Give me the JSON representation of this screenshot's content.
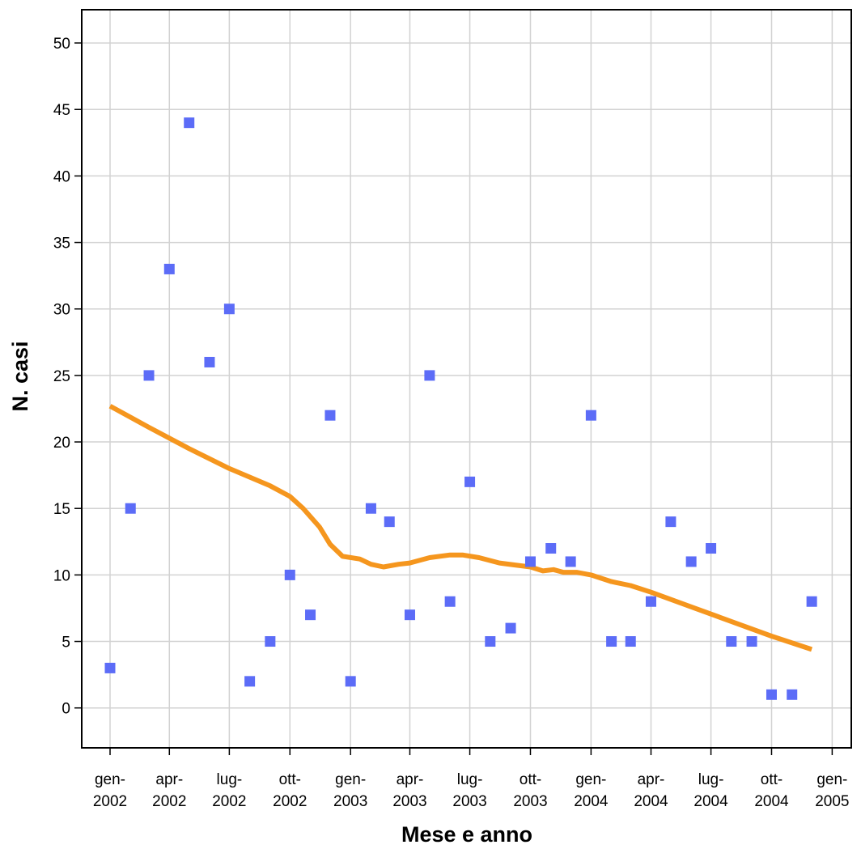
{
  "chart_data": {
    "type": "scatter",
    "title": "",
    "xlabel": "Mese e anno",
    "ylabel": "N. casi",
    "ylim": [
      -3,
      52.5
    ],
    "yticks": [
      0,
      5,
      10,
      15,
      20,
      25,
      30,
      35,
      40,
      45,
      50
    ],
    "xlim": [
      "2001-11-19",
      "2005-01-30"
    ],
    "x_ticks": [
      {
        "date": "2002-01-01",
        "line1": "gen-",
        "line2": "2002"
      },
      {
        "date": "2002-04-01",
        "line1": "apr-",
        "line2": "2002"
      },
      {
        "date": "2002-07-01",
        "line1": "lug-",
        "line2": "2002"
      },
      {
        "date": "2002-10-01",
        "line1": "ott-",
        "line2": "2002"
      },
      {
        "date": "2003-01-01",
        "line1": "gen-",
        "line2": "2003"
      },
      {
        "date": "2003-04-01",
        "line1": "apr-",
        "line2": "2003"
      },
      {
        "date": "2003-07-01",
        "line1": "lug-",
        "line2": "2003"
      },
      {
        "date": "2003-10-01",
        "line1": "ott-",
        "line2": "2003"
      },
      {
        "date": "2004-01-01",
        "line1": "gen-",
        "line2": "2004"
      },
      {
        "date": "2004-04-01",
        "line1": "apr-",
        "line2": "2004"
      },
      {
        "date": "2004-07-01",
        "line1": "lug-",
        "line2": "2004"
      },
      {
        "date": "2004-10-01",
        "line1": "ott-",
        "line2": "2004"
      },
      {
        "date": "2005-01-01",
        "line1": "gen-",
        "line2": "2005"
      }
    ],
    "grid": true,
    "legend": "none",
    "series": [
      {
        "kind": "scatter",
        "marker": "square",
        "color": "#5c6cf7",
        "points": [
          {
            "x": "2002-01-01",
            "y": 3
          },
          {
            "x": "2002-02-01",
            "y": 15
          },
          {
            "x": "2002-03-01",
            "y": 25
          },
          {
            "x": "2002-04-01",
            "y": 33
          },
          {
            "x": "2002-05-01",
            "y": 44
          },
          {
            "x": "2002-06-01",
            "y": 26
          },
          {
            "x": "2002-07-01",
            "y": 30
          },
          {
            "x": "2002-08-01",
            "y": 2
          },
          {
            "x": "2002-09-01",
            "y": 5
          },
          {
            "x": "2002-10-01",
            "y": 10
          },
          {
            "x": "2002-11-01",
            "y": 7
          },
          {
            "x": "2002-12-01",
            "y": 22
          },
          {
            "x": "2003-01-01",
            "y": 2
          },
          {
            "x": "2003-02-01",
            "y": 15
          },
          {
            "x": "2003-03-01",
            "y": 14
          },
          {
            "x": "2003-04-01",
            "y": 7
          },
          {
            "x": "2003-05-01",
            "y": 25
          },
          {
            "x": "2003-06-01",
            "y": 8
          },
          {
            "x": "2003-07-01",
            "y": 17
          },
          {
            "x": "2003-08-01",
            "y": 5
          },
          {
            "x": "2003-09-01",
            "y": 6
          },
          {
            "x": "2003-10-01",
            "y": 11
          },
          {
            "x": "2003-11-01",
            "y": 12
          },
          {
            "x": "2003-12-01",
            "y": 11
          },
          {
            "x": "2004-01-01",
            "y": 22
          },
          {
            "x": "2004-02-01",
            "y": 5
          },
          {
            "x": "2004-03-01",
            "y": 5
          },
          {
            "x": "2004-04-01",
            "y": 8
          },
          {
            "x": "2004-05-01",
            "y": 14
          },
          {
            "x": "2004-06-01",
            "y": 11
          },
          {
            "x": "2004-07-01",
            "y": 12
          },
          {
            "x": "2004-08-01",
            "y": 5
          },
          {
            "x": "2004-09-01",
            "y": 5
          },
          {
            "x": "2004-10-01",
            "y": 1
          },
          {
            "x": "2004-11-01",
            "y": 1
          },
          {
            "x": "2004-12-01",
            "y": 8
          }
        ]
      },
      {
        "kind": "line",
        "color": "#f5961e",
        "points": [
          {
            "x": "2002-01-01",
            "y": 22.7
          },
          {
            "x": "2002-03-01",
            "y": 21.1
          },
          {
            "x": "2002-05-01",
            "y": 19.5
          },
          {
            "x": "2002-07-01",
            "y": 18.0
          },
          {
            "x": "2002-09-01",
            "y": 16.7
          },
          {
            "x": "2002-10-01",
            "y": 15.9
          },
          {
            "x": "2002-10-21",
            "y": 15.0
          },
          {
            "x": "2002-11-15",
            "y": 13.6
          },
          {
            "x": "2002-12-01",
            "y": 12.3
          },
          {
            "x": "2002-12-20",
            "y": 11.4
          },
          {
            "x": "2003-01-15",
            "y": 11.2
          },
          {
            "x": "2003-02-01",
            "y": 10.8
          },
          {
            "x": "2003-02-20",
            "y": 10.6
          },
          {
            "x": "2003-03-15",
            "y": 10.8
          },
          {
            "x": "2003-04-01",
            "y": 10.9
          },
          {
            "x": "2003-05-01",
            "y": 11.3
          },
          {
            "x": "2003-06-01",
            "y": 11.5
          },
          {
            "x": "2003-06-20",
            "y": 11.5
          },
          {
            "x": "2003-07-15",
            "y": 11.3
          },
          {
            "x": "2003-08-15",
            "y": 10.9
          },
          {
            "x": "2003-09-15",
            "y": 10.7
          },
          {
            "x": "2003-10-01",
            "y": 10.6
          },
          {
            "x": "2003-10-20",
            "y": 10.3
          },
          {
            "x": "2003-11-05",
            "y": 10.4
          },
          {
            "x": "2003-11-20",
            "y": 10.2
          },
          {
            "x": "2003-12-10",
            "y": 10.2
          },
          {
            "x": "2004-01-01",
            "y": 10.0
          },
          {
            "x": "2004-02-01",
            "y": 9.5
          },
          {
            "x": "2004-03-01",
            "y": 9.2
          },
          {
            "x": "2004-04-01",
            "y": 8.7
          },
          {
            "x": "2004-06-01",
            "y": 7.6
          },
          {
            "x": "2004-08-01",
            "y": 6.5
          },
          {
            "x": "2004-10-01",
            "y": 5.4
          },
          {
            "x": "2004-12-01",
            "y": 4.4
          }
        ]
      }
    ]
  }
}
